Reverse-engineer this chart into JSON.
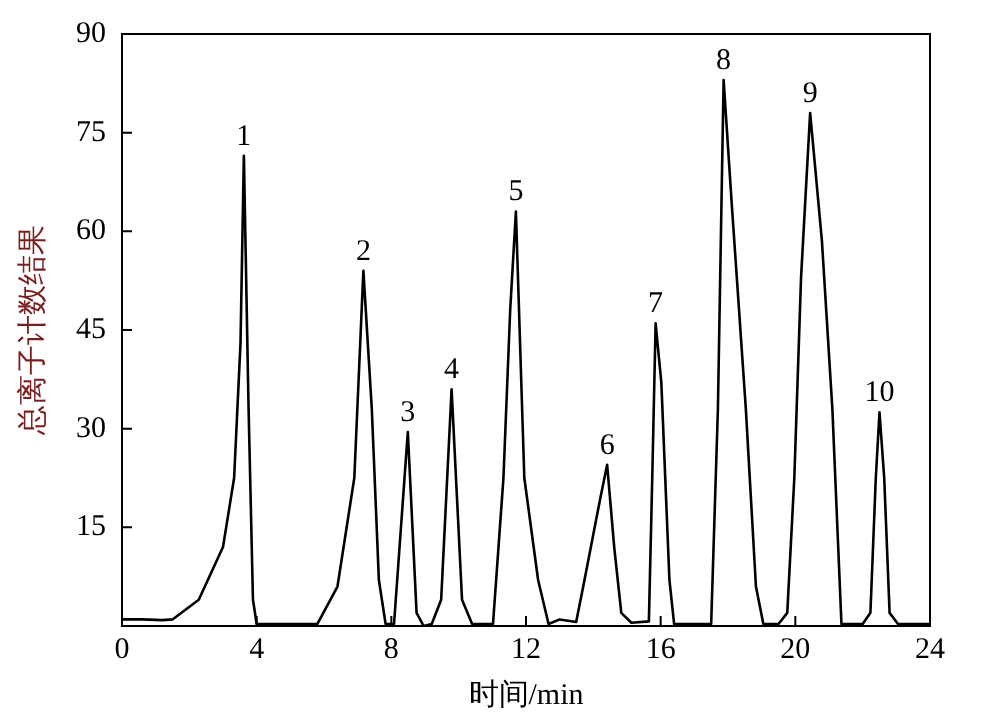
{
  "chart_data": {
    "type": "line",
    "xlabel": "时间/min",
    "ylabel": "总离子计数结果",
    "xlim": [
      0,
      24
    ],
    "ylim": [
      0,
      90
    ],
    "xticks": [
      0,
      4,
      8,
      12,
      16,
      20,
      24
    ],
    "yticks": [
      15,
      30,
      45,
      60,
      75,
      90
    ],
    "grid": false,
    "legend": false,
    "marker": "none",
    "line_style": "solid",
    "series": [
      {
        "color": "#000000",
        "x": [
          0,
          0.6,
          1.2,
          1.5,
          2.28,
          3.0,
          3.33,
          3.52,
          3.62,
          3.76,
          3.89,
          4.0,
          5.8,
          6.4,
          6.9,
          7.17,
          7.42,
          7.63,
          7.83,
          8.08,
          8.49,
          8.75,
          8.96,
          9.2,
          9.48,
          9.79,
          10.1,
          10.4,
          11.02,
          11.33,
          11.53,
          11.7,
          11.95,
          12.36,
          12.67,
          13.0,
          13.49,
          13.7,
          14.21,
          14.41,
          14.62,
          14.83,
          15.13,
          15.65,
          15.75,
          15.85,
          16.02,
          16.26,
          16.4,
          17.5,
          17.7,
          17.87,
          18.12,
          18.53,
          18.83,
          19.05,
          19.5,
          19.76,
          19.97,
          20.17,
          20.44,
          20.79,
          21.1,
          21.37,
          22.0,
          22.23,
          22.39,
          22.5,
          22.64,
          22.8,
          23.05,
          24
        ],
        "values": [
          1,
          1,
          0.9,
          1,
          4,
          12,
          22.5,
          43,
          71.5,
          33,
          4,
          0.3,
          0.3,
          6,
          22.5,
          54,
          33,
          7,
          0.3,
          0.3,
          29.5,
          2,
          0,
          0.3,
          4,
          36,
          4,
          0.3,
          0.3,
          22.5,
          48,
          63,
          22.5,
          7,
          0.3,
          1,
          0.6,
          6,
          19.5,
          24.5,
          12,
          2,
          0.5,
          0.7,
          22.5,
          46,
          37,
          7,
          0.3,
          0.3,
          33,
          83,
          63.5,
          33,
          6,
          0.3,
          0.3,
          2,
          22.5,
          53,
          78,
          58.5,
          33,
          0.3,
          0.3,
          2,
          22.5,
          32.5,
          22.5,
          2,
          0.3,
          0.3
        ]
      }
    ],
    "annotations": [
      {
        "text": "1",
        "x": 3.62,
        "y": 71.5
      },
      {
        "text": "2",
        "x": 7.17,
        "y": 54
      },
      {
        "text": "3",
        "x": 8.49,
        "y": 29.5
      },
      {
        "text": "4",
        "x": 9.79,
        "y": 36
      },
      {
        "text": "5",
        "x": 11.7,
        "y": 63
      },
      {
        "text": "6",
        "x": 14.41,
        "y": 24.5
      },
      {
        "text": "7",
        "x": 15.85,
        "y": 46
      },
      {
        "text": "8",
        "x": 17.87,
        "y": 83
      },
      {
        "text": "9",
        "x": 20.44,
        "y": 78
      },
      {
        "text": "10",
        "x": 22.5,
        "y": 32.5
      }
    ]
  }
}
